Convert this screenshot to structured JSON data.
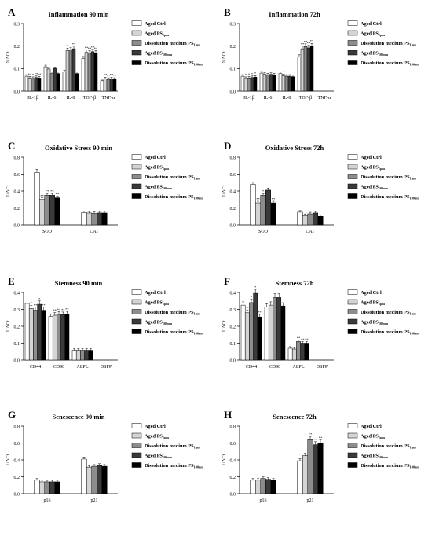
{
  "legend_labels": [
    "Aged Ctrl",
    "Aged PS",
    "Dissolution medium PS",
    "Aged PS",
    "Dissolution medium PS"
  ],
  "legend_subs": [
    "",
    "1µm",
    "1µm",
    "100nm",
    "100nm"
  ],
  "colors": [
    "#ffffff",
    "#d4d4d4",
    "#8c8c8c",
    "#3a3a3a",
    "#000000"
  ],
  "chart_data": [
    {
      "type": "bar",
      "panel": "A",
      "title": "Inflammation 90 min",
      "ylabel": "1/ΔCt",
      "ylim": [
        0,
        0.3
      ],
      "yticks": [
        "0.0",
        "0.1",
        "0.2",
        "0.3"
      ],
      "categories": [
        "IL-1β",
        "IL-6",
        "IL-8",
        "TGF-β",
        "TNF-α"
      ],
      "values": [
        [
          0.066,
          0.058,
          0.056,
          0.06,
          0.058
        ],
        [
          0.108,
          0.098,
          0.078,
          0.1,
          0.078
        ],
        [
          0.085,
          0.18,
          0.182,
          0.188,
          0.078
        ],
        [
          0.145,
          0.172,
          0.17,
          0.175,
          0.17
        ],
        [
          0.046,
          0.055,
          0.052,
          0.055,
          0.052
        ]
      ],
      "annotations": [
        [
          "",
          "**",
          "*",
          "**",
          "**"
        ],
        [
          "",
          "",
          "",
          "",
          ""
        ],
        [
          "",
          "**",
          "",
          "**",
          ""
        ],
        [
          "",
          "**",
          "**",
          "**",
          "**"
        ],
        [
          "",
          "**",
          "**",
          "**",
          "**"
        ]
      ]
    },
    {
      "type": "bar",
      "panel": "B",
      "title": "Inflammation 72h",
      "ylabel": "1/ΔCt",
      "ylim": [
        0,
        0.3
      ],
      "yticks": [
        "0.0",
        "0.1",
        "0.2",
        "0.3"
      ],
      "categories": [
        "IL-1β",
        "IL-6",
        "IL-8",
        "TGF-β",
        "TNF-α"
      ],
      "values": [
        [
          0.066,
          0.056,
          0.058,
          0.06,
          0.062
        ],
        [
          0.08,
          0.075,
          0.072,
          0.074,
          0.072
        ],
        [
          0.078,
          0.068,
          0.066,
          0.066,
          0.064
        ],
        [
          0.152,
          0.188,
          0.198,
          0.192,
          0.2
        ],
        [
          0.0,
          0.0,
          0.0,
          0.0,
          0.0
        ]
      ],
      "annotations": [
        [
          "",
          "*",
          "*",
          "*",
          "*"
        ],
        [
          "",
          "",
          "",
          "",
          ""
        ],
        [
          "",
          "*",
          "",
          "",
          ""
        ],
        [
          "",
          "**",
          "**",
          "**",
          "**"
        ],
        [
          "",
          "",
          "",
          "",
          ""
        ]
      ]
    },
    {
      "type": "bar",
      "panel": "C",
      "title": "Oxidative Stress 90 min",
      "ylabel": "1/ΔCt",
      "ylim": [
        0,
        0.8
      ],
      "yticks": [
        "0.0",
        "0.2",
        "0.4",
        "0.6",
        "0.8"
      ],
      "categories": [
        "SOD",
        "CAT"
      ],
      "values": [
        [
          0.62,
          0.3,
          0.35,
          0.35,
          0.32
        ],
        [
          0.145,
          0.14,
          0.135,
          0.14,
          0.14
        ]
      ],
      "annotations": [
        [
          "",
          "**",
          "**",
          "**",
          "**"
        ],
        [
          "",
          "",
          "",
          "",
          ""
        ]
      ]
    },
    {
      "type": "bar",
      "panel": "D",
      "title": "Oxidative Stress 72h",
      "ylabel": "1/ΔCt",
      "ylim": [
        0,
        0.8
      ],
      "yticks": [
        "0.0",
        "0.2",
        "0.4",
        "0.6",
        "0.8"
      ],
      "categories": [
        "SOD",
        "CAT"
      ],
      "values": [
        [
          0.48,
          0.26,
          0.35,
          0.41,
          0.26
        ],
        [
          0.15,
          0.11,
          0.13,
          0.14,
          0.1
        ]
      ],
      "annotations": [
        [
          "",
          "**",
          "*",
          "",
          "**"
        ],
        [
          "",
          "",
          "",
          "",
          ""
        ]
      ]
    },
    {
      "type": "bar",
      "panel": "E",
      "title": "Stemness 90 min",
      "ylabel": "1/ΔCt",
      "ylim": [
        0,
        0.4
      ],
      "yticks": [
        "0.0",
        "0.1",
        "0.2",
        "0.3",
        "0.4"
      ],
      "categories": [
        "CD44",
        "CD90",
        "ALPL",
        "DSPP"
      ],
      "values": [
        [
          0.335,
          0.305,
          0.295,
          0.33,
          0.295
        ],
        [
          0.258,
          0.265,
          0.27,
          0.268,
          0.272
        ],
        [
          0.058,
          0.058,
          0.058,
          0.058,
          0.058
        ],
        [
          0.0,
          0.0,
          0.0,
          0.0,
          0.0
        ]
      ],
      "annotations": [
        [
          "",
          "**",
          "**",
          "*",
          "**"
        ],
        [
          "",
          "**",
          "**",
          "**",
          "**"
        ],
        [
          "",
          "",
          "",
          "",
          ""
        ],
        [
          "",
          "",
          "",
          "",
          ""
        ]
      ]
    },
    {
      "type": "bar",
      "panel": "F",
      "title": "Stemness 72h",
      "ylabel": "1/ΔCt",
      "ylim": [
        0,
        0.4
      ],
      "yticks": [
        "0.0",
        "0.1",
        "0.2",
        "0.3",
        "0.4"
      ],
      "categories": [
        "CD44",
        "CD90",
        "ALPL",
        "DSPP"
      ],
      "values": [
        [
          0.325,
          0.28,
          0.34,
          0.395,
          0.255
        ],
        [
          0.315,
          0.325,
          0.37,
          0.37,
          0.32
        ],
        [
          0.07,
          0.065,
          0.11,
          0.1,
          0.1
        ],
        [
          0.0,
          0.0,
          0.0,
          0.0,
          0.0
        ]
      ],
      "annotations": [
        [
          "",
          "**",
          "*",
          "*",
          "**"
        ],
        [
          "",
          "",
          "",
          "",
          ""
        ],
        [
          "",
          "",
          "**",
          "**",
          "**"
        ],
        [
          "",
          "",
          "",
          "",
          ""
        ]
      ]
    },
    {
      "type": "bar",
      "panel": "G",
      "title": "Senescence 90 min",
      "ylabel": "1/ΔCt",
      "ylim": [
        0,
        0.8
      ],
      "yticks": [
        "0.0",
        "0.2",
        "0.4",
        "0.6",
        "0.8"
      ],
      "categories": [
        "p16",
        "p21"
      ],
      "values": [
        [
          0.16,
          0.14,
          0.14,
          0.14,
          0.14
        ],
        [
          0.41,
          0.315,
          0.325,
          0.335,
          0.325
        ]
      ],
      "annotations": [
        [
          "",
          "",
          "",
          "",
          ""
        ],
        [
          "",
          "",
          "",
          "",
          ""
        ]
      ]
    },
    {
      "type": "bar",
      "panel": "H",
      "title": "Senescence 72h",
      "ylabel": "1/ΔCt",
      "ylim": [
        0,
        0.8
      ],
      "yticks": [
        "0.0",
        "0.2",
        "0.4",
        "0.6",
        "0.8"
      ],
      "categories": [
        "p16",
        "p21"
      ],
      "values": [
        [
          0.16,
          0.16,
          0.18,
          0.17,
          0.16
        ],
        [
          0.39,
          0.45,
          0.64,
          0.58,
          0.6
        ]
      ],
      "annotations": [
        [
          "",
          "",
          "",
          "",
          ""
        ],
        [
          "",
          "",
          "**",
          "**",
          "**"
        ]
      ]
    }
  ]
}
